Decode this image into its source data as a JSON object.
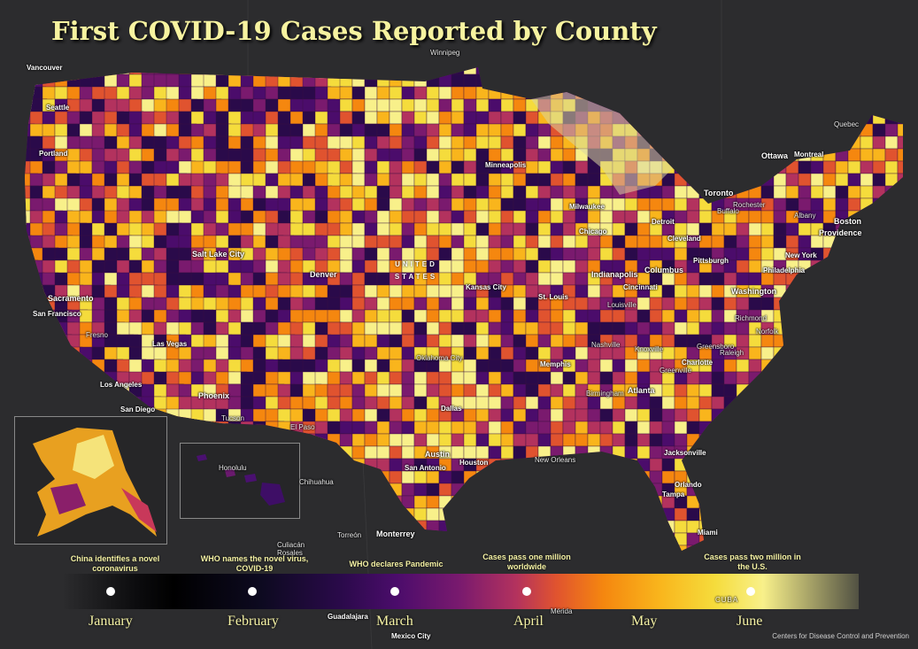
{
  "title": "First COVID-19 Cases Reported by County",
  "country_label": "UNITED STATES",
  "cities": {
    "vancouver": "Vancouver",
    "winnipeg": "Winnipeg",
    "quebec": "Quebec",
    "ottawa": "Ottawa",
    "montreal": "Montreal",
    "toronto": "Toronto",
    "rochester": "Rochester",
    "buffalo": "Buffalo",
    "seattle": "Seattle",
    "portland": "Portland",
    "minneapolis": "Minneapolis",
    "milwaukee": "Milwaukee",
    "detroit": "Detroit",
    "albany": "Albany",
    "boston": "Boston",
    "providence": "Providence",
    "chicago": "Chicago",
    "cleveland": "Cleveland",
    "new_york": "New York",
    "salt_lake_city": "Salt Lake City",
    "pittsburgh": "Pittsburgh",
    "columbus": "Columbus",
    "philadelphia": "Philadelphia",
    "denver": "Denver",
    "indianapolis": "Indianapolis",
    "sacramento": "Sacramento",
    "kansas_city": "Kansas City",
    "cincinnati": "Cincinnati",
    "washington": "Washington",
    "st_louis": "St. Louis",
    "san_francisco": "San Francisco",
    "louisville": "Louisville",
    "richmond": "Richmond",
    "fresno": "Fresno",
    "norfolk": "Norfolk",
    "las_vegas": "Las Vegas",
    "nashville": "Nashville",
    "knoxville": "Knoxville",
    "greensboro": "Greensboro",
    "raleigh": "Raleigh",
    "oklahoma_city": "Oklahoma City",
    "memphis": "Memphis",
    "charlotte": "Charlotte",
    "greenville": "Greenville",
    "los_angeles": "Los Angeles",
    "phoenix": "Phoenix",
    "birmingham": "Birmingham",
    "atlanta": "Atlanta",
    "san_diego": "San Diego",
    "dallas": "Dallas",
    "tucson": "Tucson",
    "el_paso": "El Paso",
    "austin": "Austin",
    "jacksonville": "Jacksonville",
    "houston": "Houston",
    "new_orleans": "New Orleans",
    "san_antonio": "San Antonio",
    "honolulu": "Honolulu",
    "chihuahua": "Chihuahua",
    "orlando": "Orlando",
    "tampa": "Tampa",
    "miami": "Miami",
    "culiacan": "Culiacán",
    "rosales": "Rosales",
    "torreon": "Torreón",
    "monterrey": "Monterrey",
    "guadalajara": "Guadalajara",
    "merida": "Mérida",
    "mexico_city": "Mexico City",
    "cuba": "CUBA"
  },
  "events": [
    {
      "text": "China identifies a novel coronavirus"
    },
    {
      "text": "WHO names the novel virus, COVID-19"
    },
    {
      "text": "WHO declares Pandemic"
    },
    {
      "text": "Cases pass one million worldwide"
    },
    {
      "text": "Cases pass two million in the U.S."
    }
  ],
  "months": [
    "January",
    "February",
    "March",
    "April",
    "May",
    "June"
  ],
  "source": "Centers for Disease Control and Prevention",
  "colors": {
    "background": "#2c2c2e",
    "title": "#f7f3a0",
    "ramp": [
      "#000004",
      "#2a0a4a",
      "#4b0c6b",
      "#7a1a6e",
      "#b3325e",
      "#e0532f",
      "#f5870f",
      "#f9b51c",
      "#f5dc3c",
      "#f8f08a"
    ]
  }
}
